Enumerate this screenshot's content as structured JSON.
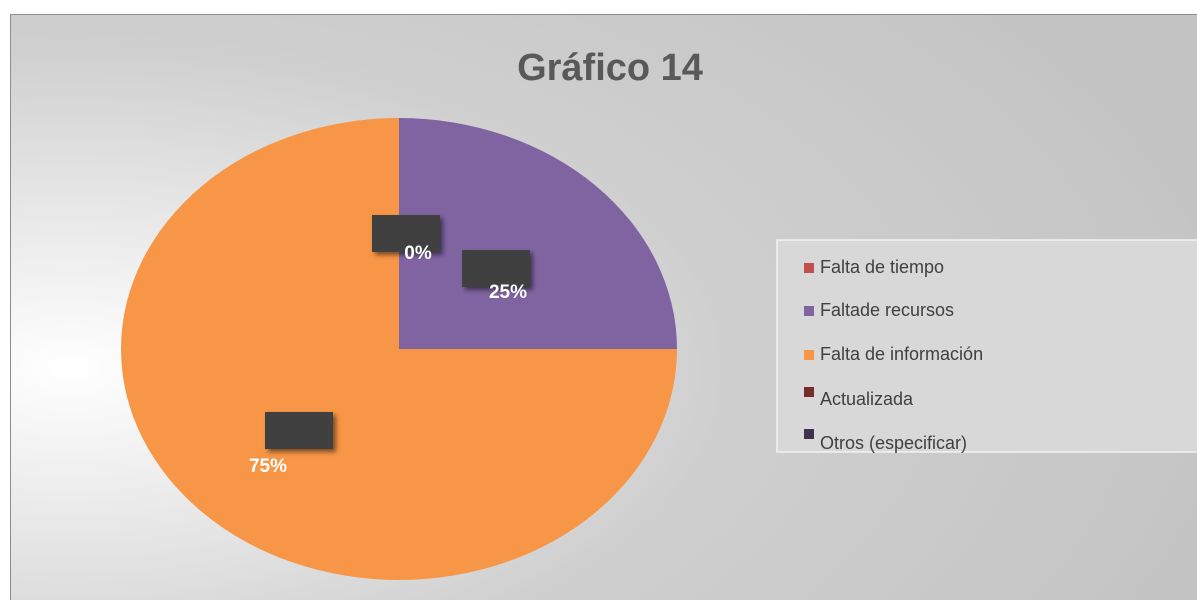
{
  "chart_data": {
    "type": "pie",
    "title": "Gráfico 14",
    "categories": [
      "Falta de tiempo",
      "Faltade recursos",
      "Falta de información",
      "Actualizada",
      "Otros (especificar)"
    ],
    "values": [
      0,
      25,
      75,
      0,
      0
    ],
    "value_labels": [
      "0%",
      "25%",
      "75%",
      null,
      null
    ],
    "colors": [
      "#c0504d",
      "#8064a2",
      "#f79646",
      "#772c2a",
      "#403152"
    ],
    "legend": "right"
  }
}
